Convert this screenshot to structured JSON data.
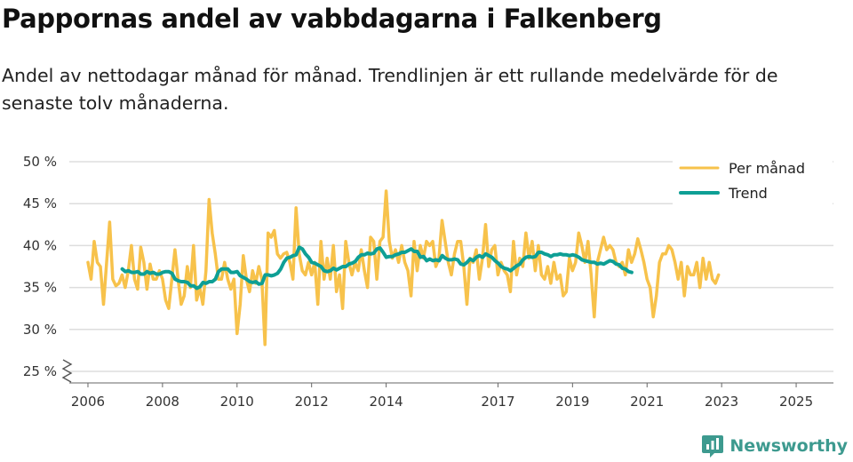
{
  "header": {
    "title": "Pappornas andel av vabbdagarna i Falkenberg",
    "subtitle": "Andel av nettodagar månad för månad. Trendlinjen är ett rullande medelvärde för de senaste tolv månaderna."
  },
  "brand": {
    "name": "Newsworthy",
    "icon": "newsworthy-logo-icon"
  },
  "colors": {
    "monthly": "#f7c24b",
    "trend": "#0e9f95",
    "grid": "#dddddd",
    "axis": "#666666",
    "brand": "#3d9a8f"
  },
  "chart_data": {
    "type": "line",
    "title": "Pappornas andel av vabbdagarna i Falkenberg",
    "xlabel": "",
    "ylabel": "",
    "ylim": [
      25,
      50
    ],
    "y_axis_break": true,
    "yticks": [
      25,
      30,
      35,
      40,
      45,
      50
    ],
    "ytick_labels": [
      "25 %",
      "30 %",
      "35 %",
      "40 %",
      "45 %",
      "50 %"
    ],
    "xlim": [
      2005.5,
      2026
    ],
    "xticks": [
      2006,
      2008,
      2010,
      2012,
      2014,
      2017,
      2019,
      2021,
      2023,
      2025
    ],
    "xtick_labels": [
      "2006",
      "2008",
      "2010",
      "2012",
      "2014",
      "2017",
      "2019",
      "2021",
      "2023",
      "2025"
    ],
    "grid": true,
    "legend": {
      "position": "top-right",
      "entries": [
        "Per månad",
        "Trend"
      ]
    },
    "series": [
      {
        "name": "Per månad",
        "x_start": 2006.0,
        "step": 0.0833333,
        "values": [
          38,
          36,
          40.5,
          38,
          37.5,
          33,
          38,
          42.8,
          36,
          35.2,
          35.5,
          36.5,
          35,
          37,
          40,
          36,
          34.8,
          39.8,
          38,
          34.8,
          37.8,
          36,
          36,
          37,
          36,
          33.5,
          32.5,
          36,
          39.5,
          36,
          33,
          34,
          37.5,
          35,
          40,
          33.5,
          35,
          33,
          37,
          45.5,
          41.5,
          39,
          36,
          36,
          38,
          36,
          34.8,
          36,
          29.5,
          33,
          38.8,
          36,
          34.5,
          37,
          35.5,
          37.5,
          36,
          28.2,
          41.5,
          41,
          41.8,
          39,
          38.5,
          39,
          39.2,
          38,
          36,
          44.5,
          39,
          37,
          36.5,
          38,
          36.5,
          38,
          33,
          40.5,
          36,
          38.5,
          36,
          40,
          34.5,
          36.5,
          32.5,
          40.5,
          38,
          36.5,
          38,
          37,
          39.5,
          37,
          35,
          41,
          40.5,
          36,
          40.5,
          41,
          46.5,
          40.5,
          38.5,
          39.5,
          38,
          40,
          38,
          37,
          34,
          40.5,
          37,
          40,
          38.5,
          40.5,
          40,
          40.5,
          37.5,
          38.5,
          43,
          40.5,
          38,
          36.5,
          39,
          40.5,
          40.5,
          37.5,
          33,
          38.5,
          38,
          39.5,
          36,
          38.5,
          42.5,
          37.5,
          39.5,
          40,
          36.5,
          38,
          37,
          36.5,
          34.5,
          40.5,
          36.5,
          38.5,
          37.5,
          41.5,
          38.5,
          40.5,
          37,
          40,
          36.5,
          36,
          37.5,
          35.5,
          38,
          36,
          36.5,
          34,
          34.5,
          38.5,
          37,
          38,
          41.5,
          40,
          38,
          40.5,
          36.5,
          31.5,
          38,
          39.5,
          41,
          39.5,
          40,
          39.5,
          38,
          37.5,
          38,
          36.5,
          39.5,
          38,
          39,
          40.8,
          39.5,
          38,
          36,
          35,
          31.5,
          34,
          38,
          39,
          39,
          40,
          39.5,
          38,
          36,
          38,
          34,
          37.5,
          36.5,
          36.5,
          38,
          35,
          38.5,
          36,
          38,
          36,
          35.5,
          36.5
        ]
      },
      {
        "name": "Trend",
        "x_start": 2006.92,
        "step": 0.0833333,
        "values": [
          37.2,
          36.9,
          37.0,
          36.8,
          36.8,
          36.9,
          36.6,
          36.6,
          36.9,
          36.7,
          36.8,
          36.6,
          36.6,
          36.8,
          36.9,
          36.9,
          36.7,
          36.0,
          35.8,
          35.7,
          35.7,
          35.6,
          35.2,
          35.2,
          34.9,
          35.1,
          35.6,
          35.5,
          35.7,
          35.7,
          36.0,
          36.9,
          37.2,
          37.2,
          37.2,
          36.8,
          36.8,
          36.9,
          36.4,
          36.2,
          36.0,
          35.7,
          35.6,
          35.7,
          35.4,
          35.5,
          36.5,
          36.5,
          36.4,
          36.5,
          36.7,
          37.2,
          38.0,
          38.5,
          38.6,
          38.8,
          38.9,
          39.8,
          39.6,
          39.0,
          38.6,
          38.0,
          37.9,
          37.7,
          37.5,
          37.0,
          36.9,
          37.0,
          37.3,
          37.1,
          37.3,
          37.5,
          37.5,
          37.8,
          37.9,
          38.1,
          38.6,
          38.9,
          38.9,
          39.1,
          39.0,
          39.1,
          39.6,
          39.7,
          39.2,
          38.6,
          38.7,
          38.7,
          38.9,
          39.0,
          39.2,
          39.2,
          39.4,
          39.6,
          39.3,
          39.3,
          38.6,
          38.7,
          38.2,
          38.4,
          38.2,
          38.3,
          38.2,
          38.8,
          38.5,
          38.3,
          38.3,
          38.4,
          38.3,
          37.8,
          37.7,
          38.0,
          38.4,
          38.2,
          38.6,
          38.8,
          38.6,
          39.0,
          38.8,
          38.6,
          38.2,
          37.9,
          37.5,
          37.3,
          37.2,
          37.0,
          37.3,
          37.6,
          37.8,
          38.3,
          38.6,
          38.7,
          38.6,
          38.7,
          39.2,
          39.2,
          39.0,
          38.9,
          38.7,
          38.9,
          38.9,
          39.0,
          38.9,
          38.9,
          38.8,
          38.9,
          38.8,
          38.6,
          38.3,
          38.2,
          38.1,
          38.0,
          38.0,
          37.8,
          37.9,
          37.8,
          38.0,
          38.2,
          38.1,
          37.8,
          37.7,
          37.3,
          37.2,
          36.9,
          36.8
        ]
      }
    ]
  }
}
